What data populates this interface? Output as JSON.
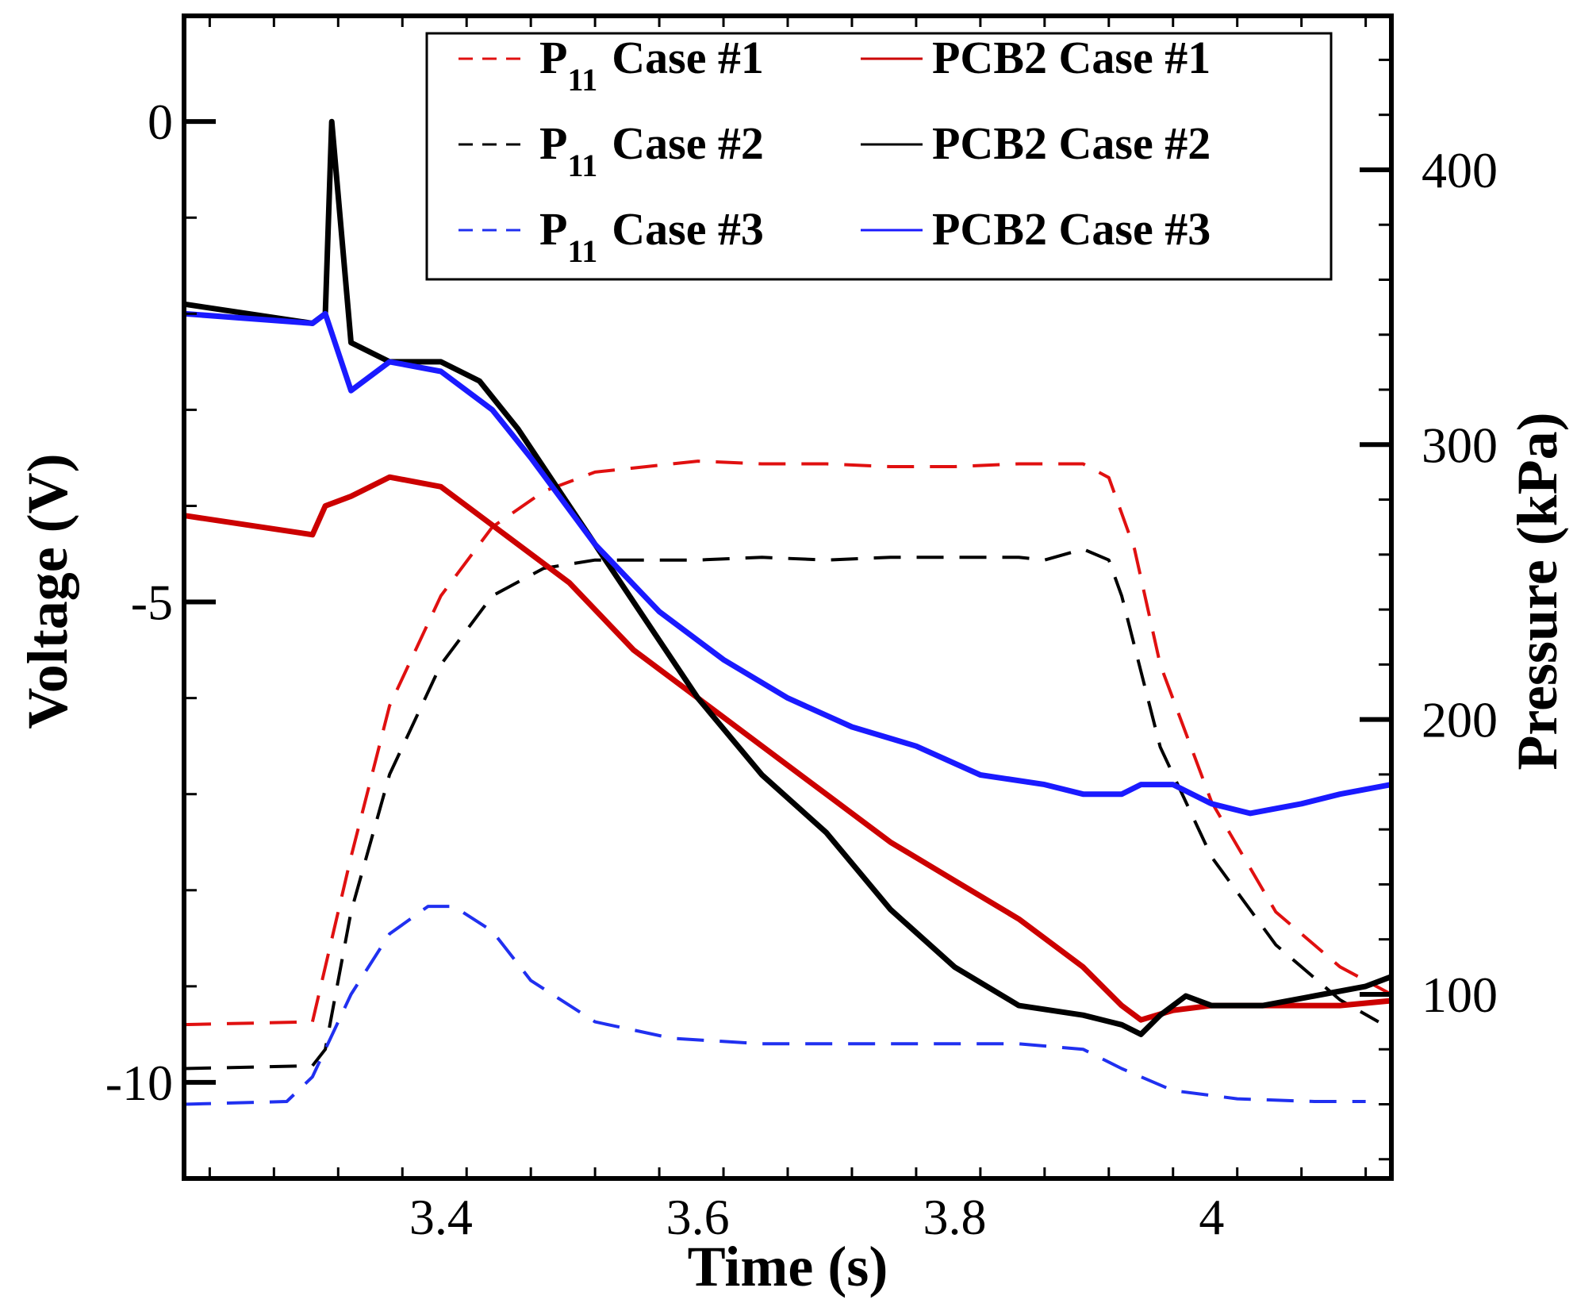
{
  "chart_data": {
    "type": "line",
    "xlabel": "Time (s)",
    "ylabel_left": "Voltage (V)",
    "ylabel_right": "Pressure (kPa)",
    "xlim": [
      3.2,
      4.14
    ],
    "ylim_left": [
      -11,
      1.1
    ],
    "ylim_right": [
      33,
      456
    ],
    "x_ticks": [
      "3.4",
      "3.6",
      "3.8",
      "4"
    ],
    "y_left_ticks": [
      "0",
      "-5",
      "-10"
    ],
    "y_right_ticks": [
      "400",
      "300",
      "200",
      "100"
    ],
    "legend": {
      "position": "top-right",
      "entries": [
        {
          "base": "P",
          "sub": "11",
          "rest": "Case #1",
          "color": "#e01010",
          "dash": true
        },
        {
          "base": "P",
          "sub": "11",
          "rest": "Case #2",
          "color": "#000000",
          "dash": true
        },
        {
          "base": "P",
          "sub": "11",
          "rest": "Case #3",
          "color": "#2030f0",
          "dash": true
        },
        {
          "label": "PCB2 Case #1",
          "color": "#cc0000",
          "dash": false
        },
        {
          "label": "PCB2 Case #2",
          "color": "#000000",
          "dash": false
        },
        {
          "label": "PCB2 Case #3",
          "color": "#1a1aff",
          "dash": false
        }
      ]
    },
    "series": [
      {
        "name": "P11 Case #1",
        "axis": "right",
        "style": "dashed",
        "color": "#e01010",
        "x": [
          3.2,
          3.3,
          3.31,
          3.33,
          3.36,
          3.4,
          3.44,
          3.48,
          3.52,
          3.56,
          3.6,
          3.65,
          3.7,
          3.75,
          3.8,
          3.85,
          3.9,
          3.92,
          3.94,
          3.96,
          4.0,
          4.05,
          4.1,
          4.14
        ],
        "y": [
          89,
          90,
          110,
          150,
          205,
          245,
          270,
          283,
          290,
          292,
          294,
          293,
          293,
          292,
          292,
          293,
          293,
          288,
          262,
          220,
          170,
          130,
          110,
          100
        ]
      },
      {
        "name": "P11 Case #2",
        "axis": "right",
        "style": "dashed",
        "color": "#000000",
        "x": [
          3.2,
          3.3,
          3.31,
          3.33,
          3.36,
          3.4,
          3.44,
          3.48,
          3.52,
          3.56,
          3.6,
          3.65,
          3.7,
          3.75,
          3.8,
          3.85,
          3.87,
          3.9,
          3.92,
          3.93,
          3.96,
          4.0,
          4.05,
          4.1,
          4.13
        ],
        "y": [
          73,
          74,
          80,
          130,
          180,
          220,
          245,
          255,
          258,
          258,
          258,
          259,
          258,
          259,
          259,
          259,
          258,
          262,
          258,
          245,
          190,
          150,
          118,
          98,
          90
        ]
      },
      {
        "name": "P11 Case #3",
        "axis": "right",
        "style": "dashed",
        "color": "#2030f0",
        "x": [
          3.2,
          3.28,
          3.3,
          3.33,
          3.36,
          3.39,
          3.41,
          3.44,
          3.47,
          3.52,
          3.58,
          3.65,
          3.75,
          3.85,
          3.9,
          3.93,
          3.97,
          4.02,
          4.08,
          4.12
        ],
        "y": [
          60,
          61,
          70,
          100,
          122,
          132,
          132,
          123,
          105,
          90,
          84,
          82,
          82,
          82,
          80,
          73,
          65,
          62,
          61,
          61
        ]
      },
      {
        "name": "PCB2 Case #1",
        "axis": "left",
        "style": "solid",
        "color": "#cc0000",
        "x": [
          3.2,
          3.3,
          3.31,
          3.33,
          3.36,
          3.4,
          3.45,
          3.5,
          3.55,
          3.6,
          3.65,
          3.7,
          3.75,
          3.8,
          3.85,
          3.9,
          3.93,
          3.945,
          3.97,
          4.0,
          4.05,
          4.1,
          4.14
        ],
        "y": [
          -4.1,
          -4.3,
          -4.0,
          -3.9,
          -3.7,
          -3.8,
          -4.3,
          -4.8,
          -5.5,
          -6.0,
          -6.5,
          -7.0,
          -7.5,
          -7.9,
          -8.3,
          -8.8,
          -9.2,
          -9.35,
          -9.25,
          -9.2,
          -9.2,
          -9.2,
          -9.15
        ]
      },
      {
        "name": "PCB2 Case #2",
        "axis": "left",
        "style": "solid",
        "color": "#000000",
        "x": [
          3.2,
          3.3,
          3.31,
          3.315,
          3.33,
          3.36,
          3.4,
          3.43,
          3.46,
          3.5,
          3.55,
          3.6,
          3.65,
          3.7,
          3.75,
          3.8,
          3.85,
          3.9,
          3.93,
          3.945,
          3.96,
          3.98,
          4.0,
          4.04,
          4.08,
          4.12,
          4.14
        ],
        "y": [
          -1.9,
          -2.1,
          -2.0,
          0.0,
          -2.3,
          -2.5,
          -2.5,
          -2.7,
          -3.2,
          -4.0,
          -5.0,
          -6.0,
          -6.8,
          -7.4,
          -8.2,
          -8.8,
          -9.2,
          -9.3,
          -9.4,
          -9.5,
          -9.3,
          -9.1,
          -9.2,
          -9.2,
          -9.1,
          -9.0,
          -8.9
        ]
      },
      {
        "name": "PCB2 Case #3",
        "axis": "left",
        "style": "solid",
        "color": "#1a1aff",
        "x": [
          3.2,
          3.3,
          3.31,
          3.33,
          3.36,
          3.4,
          3.44,
          3.47,
          3.52,
          3.57,
          3.62,
          3.67,
          3.72,
          3.77,
          3.82,
          3.87,
          3.9,
          3.93,
          3.945,
          3.97,
          4.0,
          4.03,
          4.07,
          4.1,
          4.14
        ],
        "y": [
          -2.0,
          -2.1,
          -2.0,
          -2.8,
          -2.5,
          -2.6,
          -3.0,
          -3.5,
          -4.4,
          -5.1,
          -5.6,
          -6.0,
          -6.3,
          -6.5,
          -6.8,
          -6.9,
          -7.0,
          -7.0,
          -6.9,
          -6.9,
          -7.1,
          -7.2,
          -7.1,
          -7.0,
          -6.9
        ]
      }
    ]
  }
}
